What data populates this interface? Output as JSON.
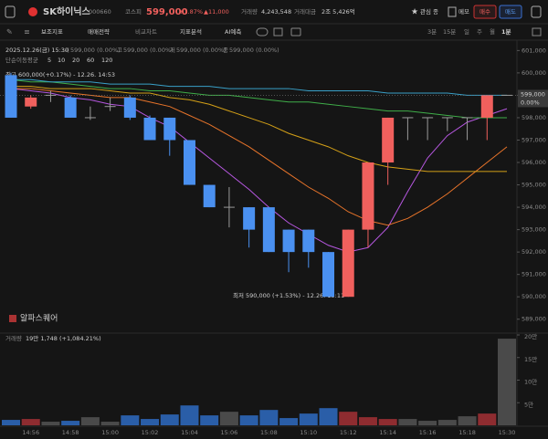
{
  "header": {
    "name": "SK하이닉스",
    "code": "000660",
    "market": "코스피",
    "price": "599,000",
    "change_pct": "+1.87%",
    "change": "▲11,000",
    "volume_label": "거래량",
    "volume": "4,243,548",
    "amount_label": "거래대금",
    "amount": "2조 5,426억",
    "watch": "관심 종",
    "memo": "메모",
    "buy": "매수",
    "sell": "매도"
  },
  "toolbar": {
    "left": [
      "보조지표",
      "매매전략",
      "비교차트",
      "지표분석",
      "AI예측"
    ],
    "periods": [
      "3분",
      "15분",
      "일",
      "주",
      "월",
      "1분"
    ]
  },
  "info": {
    "datetime": "2025.12.26(금) 15:30",
    "items": [
      {
        "k": "시",
        "v": "599,000 (0.00%)"
      },
      {
        "k": "고",
        "v": "599,000 (0.00%)"
      },
      {
        "k": "저",
        "v": "599,000 (0.00%)"
      },
      {
        "k": "종",
        "v": "599,000 (0.00%)"
      }
    ]
  },
  "watermark": "알파스퀘어",
  "chart_data": {
    "type": "candlestick",
    "categories": [
      null,
      "14:56",
      null,
      "14:58",
      null,
      "15:00",
      null,
      "15:02",
      null,
      "15:04",
      null,
      "15:06",
      null,
      "15:08",
      null,
      "15:10",
      null,
      "15:12",
      null,
      "15:14",
      null,
      "15:16",
      null,
      "15:18",
      null,
      "15:30"
    ],
    "open": [
      599900,
      598500,
      599000,
      598900,
      598000,
      598500,
      598900,
      598000,
      598000,
      597000,
      595000,
      594000,
      594000,
      594000,
      593000,
      593000,
      592000,
      590000,
      593000,
      596000,
      598000,
      598000,
      598000,
      598000,
      598000,
      599000
    ],
    "high": [
      600000,
      599000,
      599200,
      599000,
      598500,
      598900,
      599000,
      598100,
      598000,
      597000,
      595000,
      594900,
      594000,
      594000,
      593000,
      593000,
      592000,
      593000,
      596000,
      598000,
      598000,
      598000,
      598000,
      598000,
      599000,
      599000
    ],
    "low": [
      598000,
      598400,
      598700,
      598000,
      597900,
      598300,
      597900,
      597000,
      596300,
      595000,
      594000,
      593100,
      592200,
      592000,
      591100,
      591300,
      590000,
      590000,
      592200,
      595000,
      597000,
      597000,
      597400,
      597000,
      597000,
      599000
    ],
    "close": [
      598000,
      598900,
      599000,
      598000,
      598000,
      598500,
      598000,
      597000,
      597000,
      595000,
      594000,
      594000,
      593000,
      592000,
      592000,
      592000,
      590000,
      593000,
      596000,
      598000,
      598000,
      598000,
      598000,
      598000,
      599000,
      599000
    ],
    "up_color": "#f0605d",
    "down_color": "#4a90f0",
    "flat_color": "#9a9a9a",
    "ylim": [
      588500,
      601300
    ],
    "yticks": [
      {
        "value": 601000,
        "label": "601,000"
      },
      {
        "value": 600000,
        "label": "600,000"
      },
      {
        "value": 599000,
        "label": "599,000"
      },
      {
        "value": 598000,
        "label": "598,000"
      },
      {
        "value": 597000,
        "label": "597,000"
      },
      {
        "value": 596000,
        "label": "596,000"
      },
      {
        "value": 595000,
        "label": "595,000"
      },
      {
        "value": 594000,
        "label": "594,000"
      },
      {
        "value": 593000,
        "label": "593,000"
      },
      {
        "value": 592000,
        "label": "592,000"
      },
      {
        "value": 591000,
        "label": "591,000"
      },
      {
        "value": 590000,
        "label": "590,000"
      },
      {
        "value": 589000,
        "label": "589,000"
      }
    ],
    "last_price": {
      "value": 599000,
      "label": "599,000",
      "change": "0.00%"
    },
    "ma": {
      "name": "단순이동평균",
      "series": [
        {
          "name": "5",
          "color": "#b657e0",
          "values": [
            599300,
            599200,
            599100,
            598900,
            598800,
            598600,
            598500,
            598000,
            597600,
            596900,
            596200,
            595500,
            594800,
            594000,
            593300,
            592800,
            592300,
            592000,
            592200,
            593100,
            594700,
            596200,
            597200,
            597800,
            598100,
            598400
          ]
        },
        {
          "name": "10",
          "color": "#e8742a",
          "values": [
            599300,
            599300,
            599200,
            599100,
            599000,
            598900,
            598900,
            598700,
            598500,
            598100,
            597700,
            597200,
            596700,
            596100,
            595500,
            594900,
            594400,
            593800,
            593400,
            593200,
            593500,
            594000,
            594600,
            595300,
            596000,
            596700
          ]
        },
        {
          "name": "20",
          "color": "#d4a017",
          "values": [
            599400,
            599400,
            599300,
            599300,
            599300,
            599200,
            599100,
            599100,
            598900,
            598800,
            598600,
            598300,
            598000,
            597700,
            597300,
            597000,
            596700,
            596300,
            596000,
            595800,
            595700,
            595600,
            595600,
            595600,
            595600,
            595600
          ]
        },
        {
          "name": "60",
          "color": "#3fae49",
          "values": [
            599700,
            599600,
            599600,
            599500,
            599400,
            599300,
            599300,
            599200,
            599200,
            599100,
            599000,
            599000,
            598900,
            598800,
            598700,
            598700,
            598600,
            598500,
            598400,
            598300,
            598300,
            598200,
            598100,
            598000,
            598000,
            598000
          ]
        },
        {
          "name": "120",
          "color": "#39a0c8",
          "values": [
            599700,
            599700,
            599600,
            599600,
            599600,
            599500,
            599500,
            599500,
            599400,
            599400,
            599400,
            599300,
            599300,
            599300,
            599300,
            599200,
            599200,
            599200,
            599200,
            599100,
            599100,
            599100,
            599100,
            599000,
            599000,
            599000
          ]
        }
      ]
    },
    "annotations": {
      "high": "최고 600,000(+0.17%) - 12.26. 14:53",
      "low": "최저 590,000 (+1.53%) - 12.26. 15:11"
    },
    "volume": {
      "label": "거래량",
      "caption": "19만 1,748 (+1,084.21%)",
      "values": [
        12000,
        14000,
        8000,
        10000,
        18000,
        8000,
        22000,
        14000,
        24000,
        44000,
        22000,
        30000,
        22000,
        34000,
        16000,
        26000,
        38000,
        30000,
        18000,
        14000,
        14000,
        10000,
        12000,
        20000,
        26000,
        191748
      ],
      "up_color": "#8e2c30",
      "down_color": "#2a5ea8",
      "flat_color": "#4a4a4a",
      "ylim": [
        0,
        200000
      ],
      "yticks": [
        {
          "value": 200000,
          "label": "20만"
        },
        {
          "value": 150000,
          "label": "15만"
        },
        {
          "value": 100000,
          "label": "10만"
        },
        {
          "value": 50000,
          "label": "5만"
        }
      ]
    }
  }
}
